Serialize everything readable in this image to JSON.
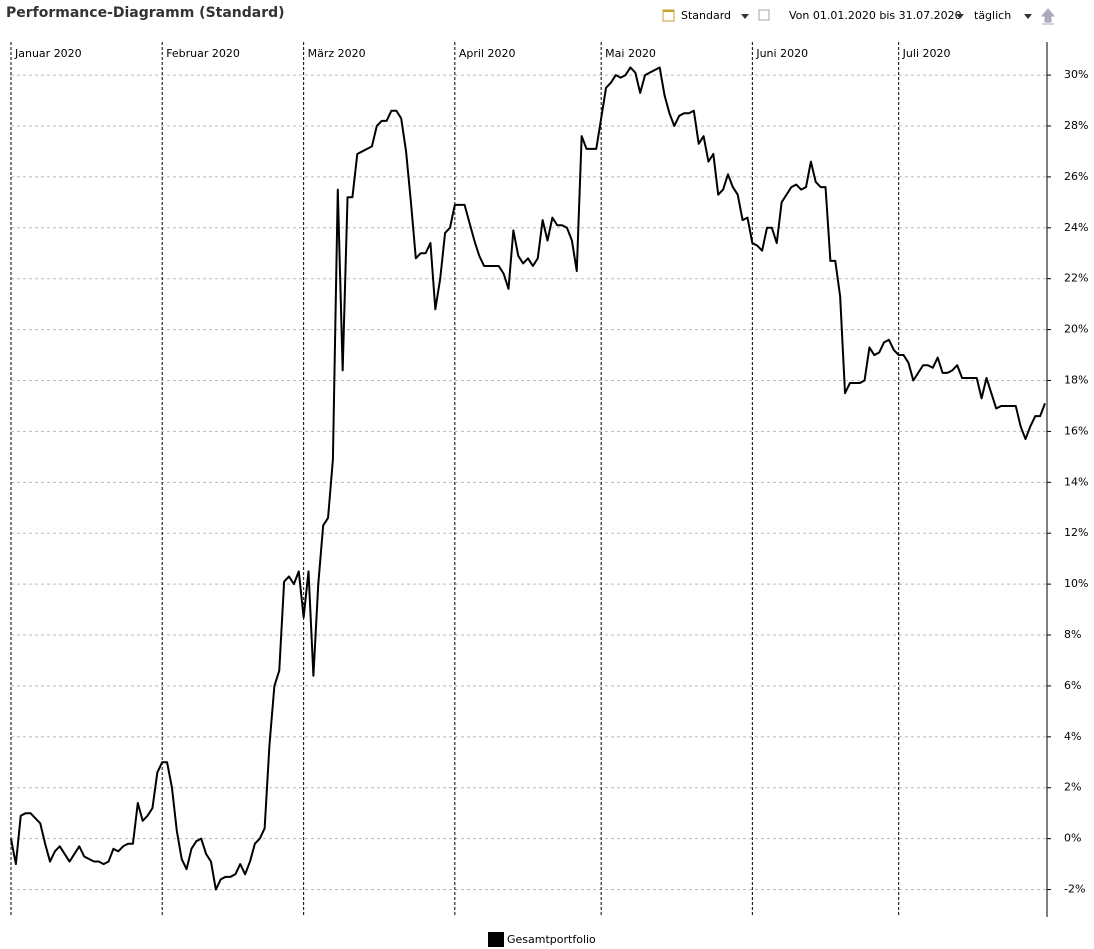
{
  "toolbar": {
    "view": "Standard",
    "range": "Von 01.01.2020 bis 31.07.2020",
    "interval": "täglich"
  },
  "chart_data": {
    "type": "line",
    "title": "Performance-Diagramm (Standard)",
    "categories": [
      "Januar 2020",
      null,
      null,
      null,
      null,
      null,
      null,
      null,
      null,
      null,
      null,
      null,
      null,
      null,
      null,
      null,
      null,
      null,
      null,
      null,
      null,
      null,
      null,
      null,
      null,
      null,
      null,
      null,
      null,
      null,
      null,
      "Februar 2020",
      null,
      null,
      null,
      null,
      null,
      null,
      null,
      null,
      null,
      null,
      null,
      null,
      null,
      null,
      null,
      null,
      null,
      null,
      null,
      null,
      null,
      null,
      null,
      null,
      null,
      null,
      null,
      null,
      "März 2020",
      null,
      null,
      null,
      null,
      null,
      null,
      null,
      null,
      null,
      null,
      null,
      null,
      null,
      null,
      null,
      null,
      null,
      null,
      null,
      null,
      null,
      null,
      null,
      null,
      null,
      null,
      null,
      null,
      null,
      null,
      "April 2020",
      null,
      null,
      null,
      null,
      null,
      null,
      null,
      null,
      null,
      null,
      null,
      null,
      null,
      null,
      null,
      null,
      null,
      null,
      null,
      null,
      null,
      null,
      null,
      null,
      null,
      null,
      null,
      null,
      null,
      "Mai 2020",
      null,
      null,
      null,
      null,
      null,
      null,
      null,
      null,
      null,
      null,
      null,
      null,
      null,
      null,
      null,
      null,
      null,
      null,
      null,
      null,
      null,
      null,
      null,
      null,
      null,
      null,
      null,
      null,
      null,
      null,
      "Juni 2020",
      null,
      null,
      null,
      null,
      null,
      null,
      null,
      null,
      null,
      null,
      null,
      null,
      null,
      null,
      null,
      null,
      null,
      null,
      null,
      null,
      null,
      null,
      null,
      null,
      null,
      null,
      null,
      null,
      null,
      "Juli 2020",
      null,
      null,
      null,
      null,
      null,
      null,
      null,
      null,
      null,
      null,
      null,
      null,
      null,
      null,
      null,
      null,
      null,
      null,
      null,
      null,
      null,
      null,
      null,
      null,
      null,
      null,
      null,
      null,
      null,
      null
    ],
    "series": [
      {
        "name": "Gesamtportfolio",
        "color": "#000000",
        "values": [
          0.0,
          -1.0,
          0.9,
          1.0,
          1.0,
          0.8,
          0.6,
          -0.2,
          -0.9,
          -0.5,
          -0.3,
          -0.6,
          -0.9,
          -0.6,
          -0.3,
          -0.7,
          -0.8,
          -0.9,
          -0.9,
          -1.0,
          -0.9,
          -0.4,
          -0.5,
          -0.3,
          -0.2,
          -0.2,
          1.4,
          0.7,
          0.9,
          1.2,
          2.6,
          3.0,
          3.0,
          2.0,
          0.3,
          -0.8,
          -1.2,
          -0.4,
          -0.1,
          0.0,
          -0.6,
          -0.9,
          -2.0,
          -1.6,
          -1.5,
          -1.5,
          -1.4,
          -1.0,
          -1.4,
          -0.9,
          -0.2,
          0.0,
          0.4,
          3.7,
          6.0,
          6.6,
          10.1,
          10.3,
          10.0,
          10.5,
          8.7,
          10.5,
          6.4,
          10.0,
          12.3,
          12.6,
          14.9,
          25.5,
          18.4,
          25.2,
          25.2,
          26.9,
          27.0,
          27.1,
          27.2,
          28.0,
          28.2,
          28.2,
          28.6,
          28.6,
          28.3,
          27.0,
          25.0,
          22.8,
          23.0,
          23.0,
          23.4,
          20.8,
          22.0,
          23.8,
          24.0,
          24.9,
          24.9,
          24.9,
          24.2,
          23.5,
          22.9,
          22.5,
          22.5,
          22.5,
          22.5,
          22.2,
          21.6,
          23.9,
          22.9,
          22.6,
          22.8,
          22.5,
          22.8,
          24.3,
          23.5,
          24.4,
          24.1,
          24.1,
          24.0,
          23.5,
          22.3,
          27.6,
          27.1,
          27.1,
          27.1,
          28.3,
          29.5,
          29.7,
          30.0,
          29.9,
          30.0,
          30.3,
          30.1,
          29.3,
          30.0,
          30.1,
          30.2,
          30.3,
          29.2,
          28.5,
          28.0,
          28.4,
          28.5,
          28.5,
          28.6,
          27.3,
          27.6,
          26.6,
          26.9,
          25.3,
          25.5,
          26.1,
          25.6,
          25.3,
          24.3,
          24.4,
          23.4,
          23.3,
          23.1,
          24.0,
          24.0,
          23.4,
          25.0,
          25.3,
          25.6,
          25.7,
          25.5,
          25.6,
          26.6,
          25.8,
          25.6,
          25.6,
          22.7,
          22.7,
          21.3,
          17.5,
          17.9,
          17.9,
          17.9,
          18.0,
          19.3,
          19.0,
          19.1,
          19.5,
          19.6,
          19.2,
          19.0,
          19.0,
          18.7,
          18.0,
          18.3,
          18.6,
          18.6,
          18.5,
          18.9,
          18.3,
          18.3,
          18.4,
          18.6,
          18.1,
          18.1,
          18.1,
          18.1,
          17.3,
          18.1,
          17.5,
          16.9,
          17.0,
          17.0,
          17.0,
          17.0,
          16.2,
          15.7,
          16.2,
          16.6,
          16.6,
          17.1
        ]
      }
    ],
    "ylim": [
      -3,
      31.3
    ],
    "yticks": [
      {
        "value": -2,
        "label": "-2%"
      },
      {
        "value": 0,
        "label": "0%"
      },
      {
        "value": 2,
        "label": "2%"
      },
      {
        "value": 4,
        "label": "4%"
      },
      {
        "value": 6,
        "label": "6%"
      },
      {
        "value": 8,
        "label": "8%"
      },
      {
        "value": 10,
        "label": "10%"
      },
      {
        "value": 12,
        "label": "12%"
      },
      {
        "value": 14,
        "label": "14%"
      },
      {
        "value": 16,
        "label": "16%"
      },
      {
        "value": 18,
        "label": "18%"
      },
      {
        "value": 20,
        "label": "20%"
      },
      {
        "value": 22,
        "label": "22%"
      },
      {
        "value": 24,
        "label": "24%"
      },
      {
        "value": 26,
        "label": "26%"
      },
      {
        "value": 28,
        "label": "28%"
      },
      {
        "value": 30,
        "label": "30%"
      }
    ],
    "grid": true
  }
}
